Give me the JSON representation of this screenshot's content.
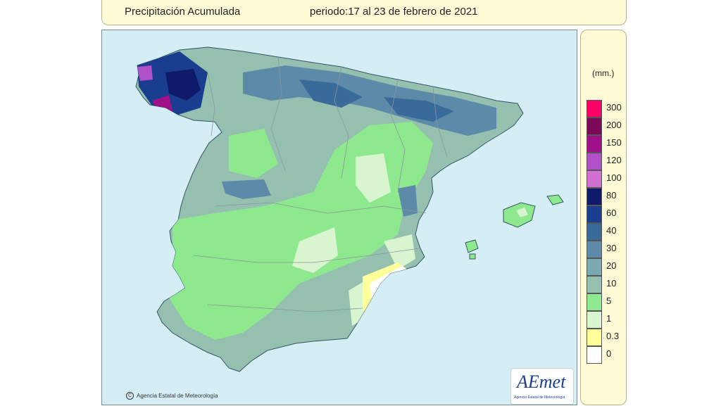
{
  "header": {
    "title": "Precipitación Acumulada",
    "period": "periodo:17 al 23 de febrero de 2021"
  },
  "map": {
    "copyright": "Agencia Estatal de Meteorología",
    "copyright_symbol": "C",
    "logo": {
      "text": "AEmet",
      "subtitle": "Agencia Estatal de Meteorología"
    },
    "colors": {
      "sea": "#d5eef6",
      "coast": "#335566",
      "borders": "#8a96a0"
    }
  },
  "legend": {
    "unit": "(mm.)",
    "items": [
      {
        "label": "300",
        "color": "#ff0066"
      },
      {
        "label": "200",
        "color": "#7a0a55"
      },
      {
        "label": "150",
        "color": "#a0108a"
      },
      {
        "label": "120",
        "color": "#b050c8"
      },
      {
        "label": "100",
        "color": "#d070d0"
      },
      {
        "label": "80",
        "color": "#0f1a6a"
      },
      {
        "label": "60",
        "color": "#1a3d8f"
      },
      {
        "label": "40",
        "color": "#3a6a9a"
      },
      {
        "label": "30",
        "color": "#5d8aa8"
      },
      {
        "label": "20",
        "color": "#7aa8b0"
      },
      {
        "label": "10",
        "color": "#95c0b0"
      },
      {
        "label": "5",
        "color": "#8ee88e"
      },
      {
        "label": "1",
        "color": "#d8f5d0"
      },
      {
        "label": "0.3",
        "color": "#ffff99"
      },
      {
        "label": "0",
        "color": "#ffffff"
      }
    ]
  }
}
